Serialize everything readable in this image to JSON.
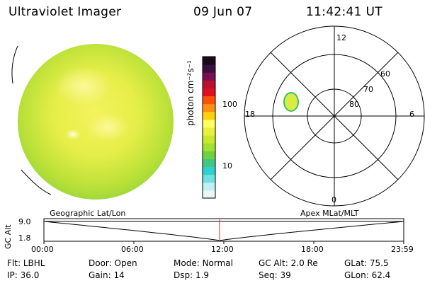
{
  "header": {
    "instrument": "Ultraviolet Imager",
    "date": "09 Jun 07",
    "time": "11:42:41 UT"
  },
  "colorbar": {
    "label": "photon cm⁻²s⁻¹",
    "ticks": [
      "100",
      "10"
    ],
    "colors": [
      "#1a0a1a",
      "#3a1040",
      "#7a1050",
      "#b81030",
      "#e01020",
      "#ff5010",
      "#ff9010",
      "#ffd010",
      "#ffff60",
      "#e8f040",
      "#c8e830",
      "#a0e030",
      "#70d040",
      "#40c880",
      "#30d0d0",
      "#70e0e0",
      "#c0f0f0",
      "#e8f8f8"
    ]
  },
  "polar": {
    "hour_labels": [
      "12",
      "18",
      "6",
      "0"
    ],
    "lat_labels": [
      "60",
      "70",
      "80"
    ]
  },
  "timeline": {
    "left_label": "Geographic Lat/Lon",
    "right_label": "Apex MLat/MLT",
    "y_axis_label": "GC Alt",
    "y_ticks": [
      "9.0",
      "1.8"
    ],
    "x_ticks": [
      "00:00",
      "06:00",
      "12:00",
      "18:00",
      "23:59"
    ],
    "current_time_hours": 11.71
  },
  "info": {
    "row1": [
      {
        "label": "Flt:",
        "value": "LBHL"
      },
      {
        "label": "Door:",
        "value": "Open"
      },
      {
        "label": "Mode:",
        "value": "Normal"
      },
      {
        "label": "GC Alt:",
        "value": "2.0 Re"
      },
      {
        "label": "GLat:",
        "value": "75.5"
      }
    ],
    "row2": [
      {
        "label": "IP:",
        "value": "36.0"
      },
      {
        "label": "Gain:",
        "value": "14"
      },
      {
        "label": "Dsp:",
        "value": "1.9"
      },
      {
        "label": "Seq:",
        "value": "39"
      },
      {
        "label": "GLon:",
        "value": "62.4"
      }
    ]
  }
}
